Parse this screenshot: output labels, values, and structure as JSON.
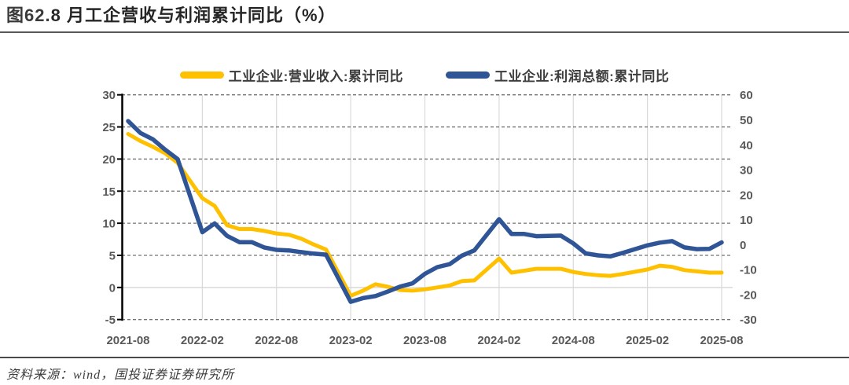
{
  "figure": {
    "title_prefix": "图62.",
    "title_main": "8 月工企营收与利润累计同比（%）",
    "source": "资料来源：wind，国投证券证券研究所"
  },
  "chart_data": {
    "type": "line",
    "title": "图62.8 月工企营收与利润累计同比（%）",
    "legend_position": "top-center",
    "grid": {
      "h_dashed_color": "#737373",
      "zero_line_color": "#D9D9D9",
      "v_line_color": "#D9D9D9",
      "axis_color": "#000000",
      "label_color": "#595959"
    },
    "left_axis": {
      "min": -5,
      "max": 30,
      "ticks": [
        30,
        25,
        20,
        15,
        10,
        5,
        0,
        -5
      ]
    },
    "right_axis": {
      "min": -30,
      "max": 60,
      "ticks": [
        60,
        50,
        40,
        30,
        20,
        10,
        0,
        -10,
        -20,
        -30
      ]
    },
    "x_tick_labels": [
      "2021-08",
      "2022-02",
      "2022-08",
      "2023-02",
      "2023-08",
      "2024-02",
      "2024-08",
      "2025-02",
      "2025-08"
    ],
    "categories": [
      "2021-08",
      "2021-09",
      "2021-10",
      "2021-11",
      "2021-12",
      "2022-02",
      "2022-03",
      "2022-04",
      "2022-05",
      "2022-06",
      "2022-07",
      "2022-08",
      "2022-09",
      "2022-10",
      "2022-11",
      "2022-12",
      "2023-02",
      "2023-03",
      "2023-04",
      "2023-05",
      "2023-06",
      "2023-07",
      "2023-08",
      "2023-09",
      "2023-10",
      "2023-11",
      "2023-12",
      "2024-02",
      "2024-03",
      "2024-04",
      "2024-05",
      "2024-06",
      "2024-07",
      "2024-08",
      "2024-09",
      "2024-10",
      "2024-11",
      "2024-12",
      "2025-02",
      "2025-03",
      "2025-04",
      "2025-05",
      "2025-06",
      "2025-07",
      "2025-08"
    ],
    "series": [
      {
        "name": "工业企业:营业收入:累计同比",
        "axis": "left",
        "color": "#FFC000",
        "values": [
          23.9,
          22.8,
          21.9,
          20.9,
          19.4,
          13.9,
          12.7,
          9.7,
          9.1,
          9.1,
          8.8,
          8.4,
          8.2,
          7.6,
          6.7,
          5.9,
          -1.3,
          -0.5,
          0.5,
          0.1,
          -0.4,
          -0.5,
          -0.3,
          0.0,
          0.3,
          1.0,
          1.1,
          4.5,
          2.3,
          2.6,
          2.9,
          2.9,
          2.9,
          2.4,
          2.1,
          1.9,
          1.8,
          2.1,
          2.8,
          3.4,
          3.2,
          2.7,
          2.5,
          2.3,
          2.3
        ]
      },
      {
        "name": "工业企业:利润总额:累计同比",
        "axis": "right",
        "color": "#2F5597",
        "values": [
          49.5,
          44.7,
          42.2,
          38.0,
          34.3,
          5.0,
          8.5,
          3.5,
          1.0,
          1.0,
          -1.1,
          -2.1,
          -2.3,
          -3.0,
          -3.6,
          -4.0,
          -22.9,
          -21.4,
          -20.6,
          -18.8,
          -16.8,
          -15.5,
          -11.7,
          -9.0,
          -7.8,
          -4.4,
          -2.3,
          10.2,
          4.3,
          4.3,
          3.4,
          3.5,
          3.6,
          0.5,
          -3.5,
          -4.3,
          -4.7,
          -3.3,
          -0.3,
          0.8,
          1.4,
          -1.1,
          -1.8,
          -1.7,
          0.9
        ]
      }
    ]
  }
}
